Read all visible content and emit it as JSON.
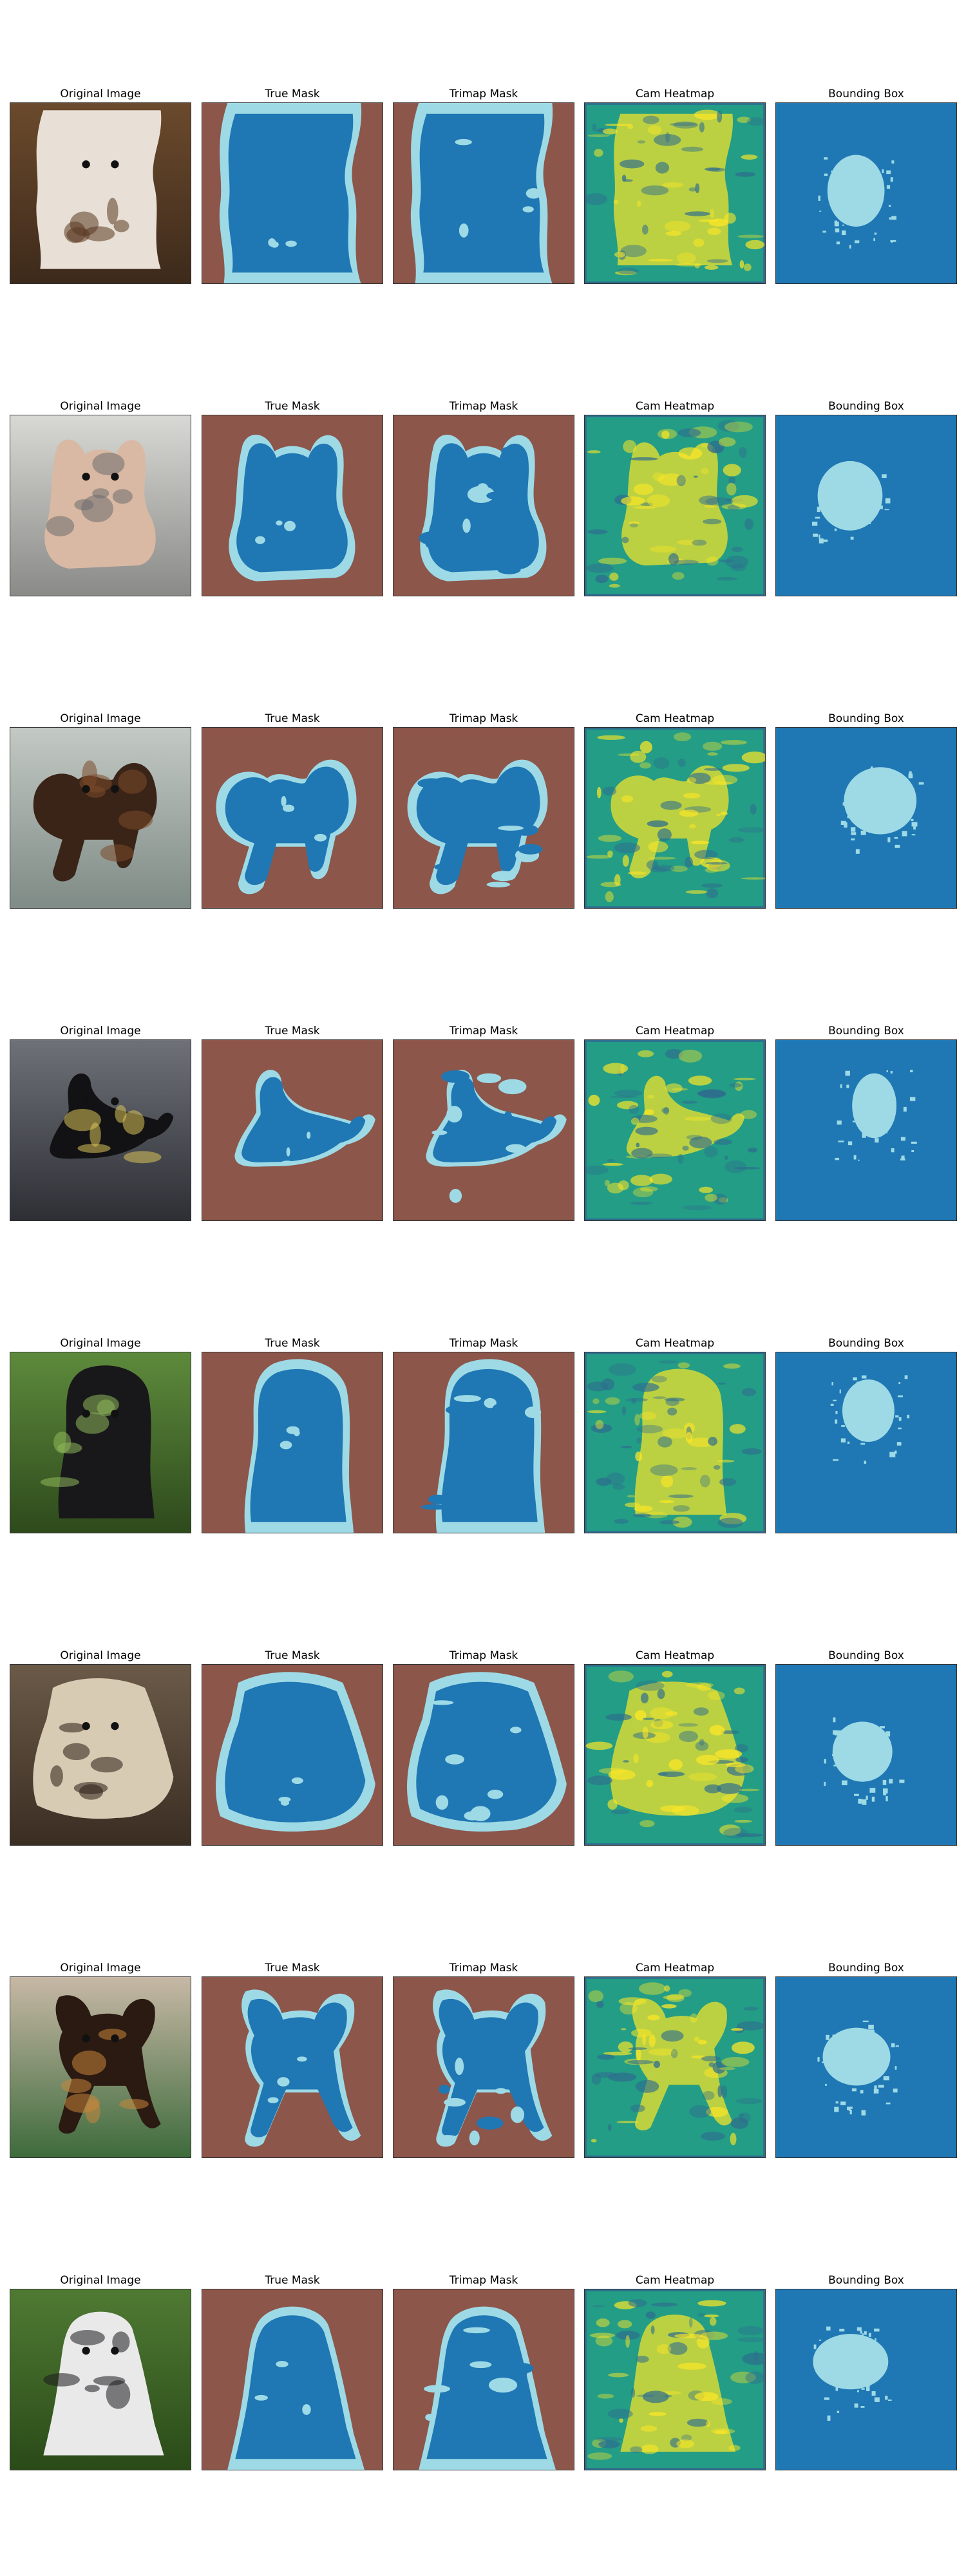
{
  "figure": {
    "column_titles": [
      "Original Image",
      "True Mask",
      "Trimap Mask",
      "Cam Heatmap",
      "Bounding Box"
    ],
    "rows": [
      {
        "photo": {
          "bg": [
            "#6b4a2c",
            "#3d2a1b"
          ],
          "subject": "#e8e0d6",
          "accent": "#5a3920"
        }
      },
      {
        "photo": {
          "bg": [
            "#d8d8d4",
            "#8a8a88"
          ],
          "subject": "#d9b9a3",
          "accent": "#6c6c70"
        }
      },
      {
        "photo": {
          "bg": [
            "#c3c9c4",
            "#7f8b86"
          ],
          "subject": "#3a2418",
          "accent": "#7a4a2a"
        }
      },
      {
        "photo": {
          "bg": [
            "#6e7178",
            "#2d2f35"
          ],
          "subject": "#121214",
          "accent": "#d9c25a"
        }
      },
      {
        "photo": {
          "bg": [
            "#5d8a3c",
            "#2e4a1c"
          ],
          "subject": "#18181b",
          "accent": "#8fb85a"
        }
      },
      {
        "photo": {
          "bg": [
            "#6b5a48",
            "#3a2d22"
          ],
          "subject": "#d8cbb3",
          "accent": "#2a1d14"
        }
      },
      {
        "photo": {
          "bg": [
            "#c7b8a6",
            "#3e6b3c"
          ],
          "subject": "#2a1a12",
          "accent": "#c9853b"
        }
      },
      {
        "photo": {
          "bg": [
            "#4f7a33",
            "#2a4a18"
          ],
          "subject": "#e9e9ea",
          "accent": "#1b1b1d"
        }
      }
    ],
    "colors": {
      "mask_background": "#8c564b",
      "mask_foreground": "#1f77b4",
      "mask_boundary": "#9edae5",
      "heat_low": "#2e6d8e",
      "heat_mid": "#21a685",
      "heat_high": "#fde725",
      "bbox_background": "#1f77b4",
      "bbox_foreground": "#9edae5"
    }
  }
}
